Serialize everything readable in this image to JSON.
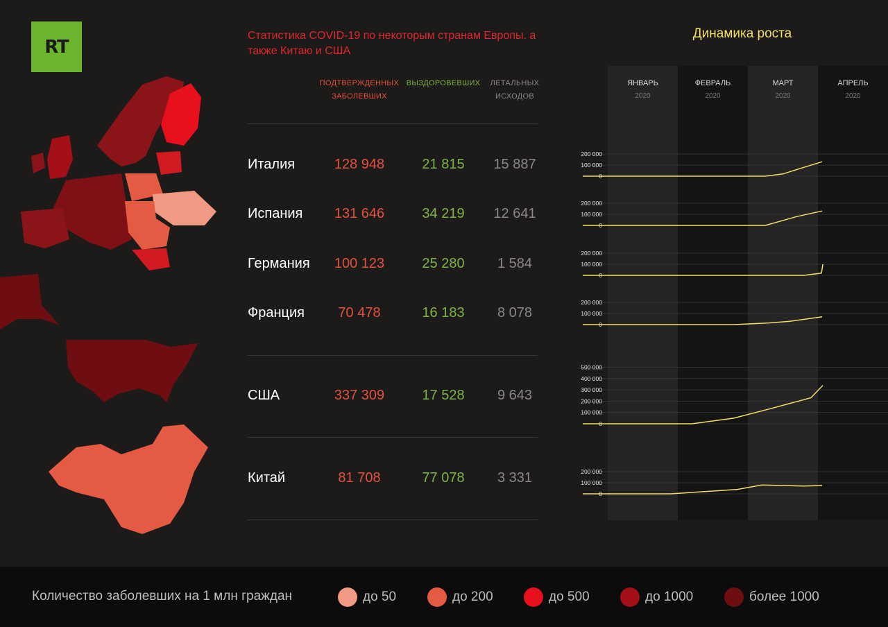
{
  "logo": "RT",
  "title": "Статистика COVID-19 по некоторым странам Европы. а также Китаю и США",
  "columns": {
    "confirmed": "ПОДТВЕРЖДЕННЫХ ЗАБОЛЕВШИХ",
    "recovered": "ВЫЗДОРОВЕВШИХ",
    "deaths": "ЛЕТАЛЬНЫХ ИСХОДОВ"
  },
  "countries": [
    {
      "name": "Италия",
      "confirmed": "128 948",
      "recovered": "21 815",
      "deaths": "15 887"
    },
    {
      "name": "Испания",
      "confirmed": "131 646",
      "recovered": "34 219",
      "deaths": "12 641"
    },
    {
      "name": "Германия",
      "confirmed": "100 123",
      "recovered": "25 280",
      "deaths": "1 584"
    },
    {
      "name": "Франция",
      "confirmed": "70 478",
      "recovered": "16 183",
      "deaths": "8 078"
    },
    {
      "name": "США",
      "confirmed": "337 309",
      "recovered": "17 528",
      "deaths": "9 643"
    },
    {
      "name": "Китай",
      "confirmed": "81 708",
      "recovered": "77 078",
      "deaths": "3 331"
    }
  ],
  "dynamics_title": "Динамика роста",
  "months": [
    {
      "name": "ЯНВАРЬ",
      "year": "2020"
    },
    {
      "name": "ФЕВРАЛЬ",
      "year": "2020"
    },
    {
      "name": "МАРТ",
      "year": "2020"
    },
    {
      "name": "АПРЕЛЬ",
      "year": "2020"
    }
  ],
  "colors": {
    "confirmed": "#e3513e",
    "recovered": "#7db543",
    "deaths": "#8a8787",
    "line": "#f3df6a",
    "title": "#e0262e"
  },
  "chart_data": [
    {
      "type": "line",
      "series": [
        {
          "values": [
            0,
            0,
            0,
            0,
            0,
            0,
            20000,
            70000,
            130000
          ]
        }
      ],
      "x": [
        0,
        0.5,
        1,
        1.5,
        2,
        2.25,
        2.5,
        2.75,
        3.06
      ],
      "ylim": [
        0,
        200000
      ],
      "yticks": [
        "200 000",
        "100 000",
        "0"
      ]
    },
    {
      "type": "line",
      "series": [
        {
          "values": [
            0,
            0,
            0,
            0,
            0,
            0,
            80000,
            130000
          ]
        }
      ],
      "x": [
        0,
        0.5,
        1,
        1.5,
        2,
        2.25,
        2.7,
        3.06
      ],
      "ylim": [
        0,
        200000
      ],
      "yticks": [
        "200 000",
        "100 000",
        "0"
      ]
    },
    {
      "type": "line",
      "series": [
        {
          "values": [
            0,
            0,
            0,
            0,
            0,
            20000,
            100000
          ]
        }
      ],
      "x": [
        0,
        1,
        2,
        2.5,
        2.8,
        3.05,
        3.07
      ],
      "ylim": [
        0,
        200000
      ],
      "yticks": [
        "200 000",
        "100 000",
        "0"
      ]
    },
    {
      "type": "line",
      "series": [
        {
          "values": [
            0,
            0,
            0,
            0,
            15000,
            30000,
            70000
          ]
        }
      ],
      "x": [
        0,
        1,
        1.5,
        1.8,
        2.3,
        2.6,
        3.06
      ],
      "ylim": [
        0,
        200000
      ],
      "yticks": [
        "200 000",
        "100 000",
        "0"
      ]
    },
    {
      "type": "line",
      "series": [
        {
          "values": [
            0,
            0,
            0,
            50000,
            130000,
            230000,
            340000
          ]
        }
      ],
      "x": [
        0,
        1,
        1.2,
        1.8,
        2.3,
        2.9,
        3.07
      ],
      "ylim": [
        0,
        500000
      ],
      "yticks": [
        "500 000",
        "400 000",
        "300 000",
        "200 000",
        "100 000",
        "0"
      ]
    },
    {
      "type": "line",
      "series": [
        {
          "values": [
            0,
            0,
            40000,
            80000,
            70000,
            75000
          ]
        }
      ],
      "x": [
        0,
        0.9,
        1.85,
        2.2,
        2.8,
        3.06
      ],
      "ylim": [
        0,
        200000
      ],
      "yticks": [
        "200 000",
        "100 000",
        "0"
      ]
    }
  ],
  "legend": {
    "title": "Количество заболевших на 1 млн граждан",
    "items": [
      {
        "label": "до 50",
        "color": "#f19a83"
      },
      {
        "label": "до 200",
        "color": "#e55a42"
      },
      {
        "label": "до 500",
        "color": "#e8101c"
      },
      {
        "label": "до 1000",
        "color": "#a51018"
      },
      {
        "label": "более 1000",
        "color": "#6e0e12"
      }
    ]
  }
}
